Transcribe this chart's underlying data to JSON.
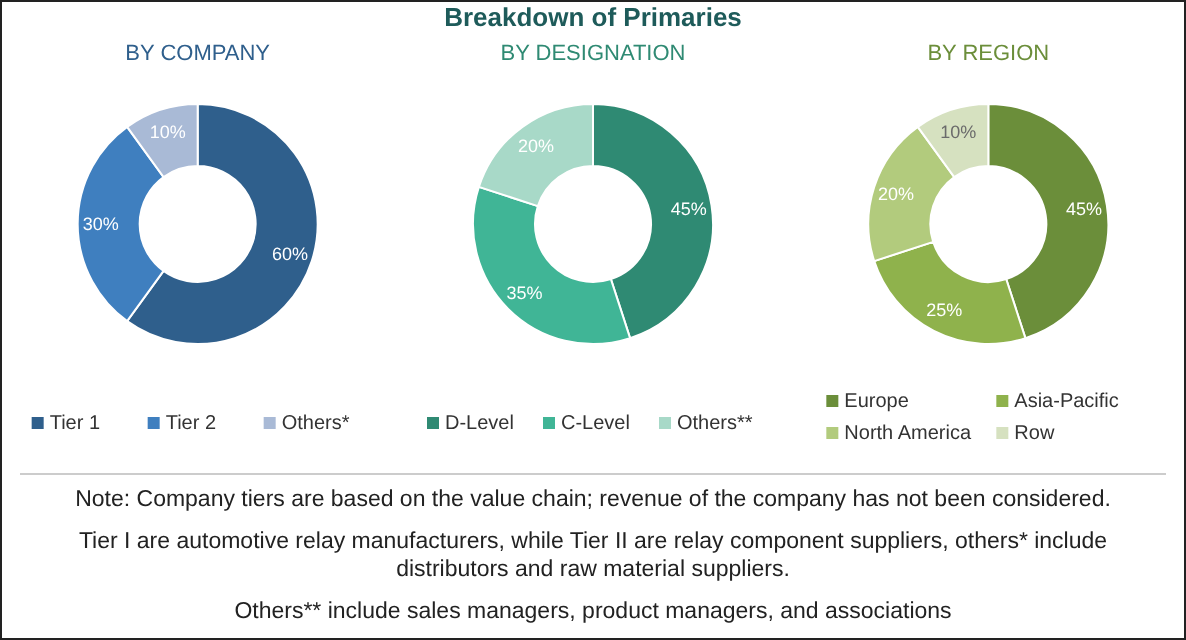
{
  "chart_data": [
    {
      "type": "donut",
      "title": "BY COMPANY",
      "categories": [
        "Tier 1",
        "Tier 2",
        "Others*"
      ],
      "values": [
        60,
        30,
        10
      ],
      "colors": [
        "#2f5f8c",
        "#3f7fbf",
        "#a9bad6"
      ],
      "value_labels": [
        "60%",
        "30%",
        "10%"
      ],
      "legend": "bottom"
    },
    {
      "type": "donut",
      "title": "BY DESIGNATION",
      "categories": [
        "D-Level",
        "C-Level",
        "Others**"
      ],
      "values": [
        45,
        35,
        20
      ],
      "colors": [
        "#2f8a73",
        "#40b596",
        "#a8d9c8"
      ],
      "value_labels": [
        "45%",
        "35%",
        "20%"
      ],
      "legend": "bottom"
    },
    {
      "type": "donut",
      "title": "BY REGION",
      "categories": [
        "Europe",
        "Asia-Pacific",
        "North America",
        "Row"
      ],
      "values": [
        45,
        25,
        20,
        10
      ],
      "colors": [
        "#6b8e3a",
        "#8fb24c",
        "#b2cb7d",
        "#d6e1c0"
      ],
      "value_labels": [
        "45%",
        "25%",
        "20%",
        "10%"
      ],
      "legend": "bottom"
    },
    {
      "type": "other",
      "title": "Breakdown of Primaries",
      "annotations": [
        "Note:  Company tiers are based on the value chain; revenue of the company has not been considered.",
        "Tier I are automotive relay manufacturers,  while Tier II are relay component suppliers, others* include distributors and raw material suppliers.",
        "Others** include sales managers, product managers, and associations"
      ]
    }
  ]
}
